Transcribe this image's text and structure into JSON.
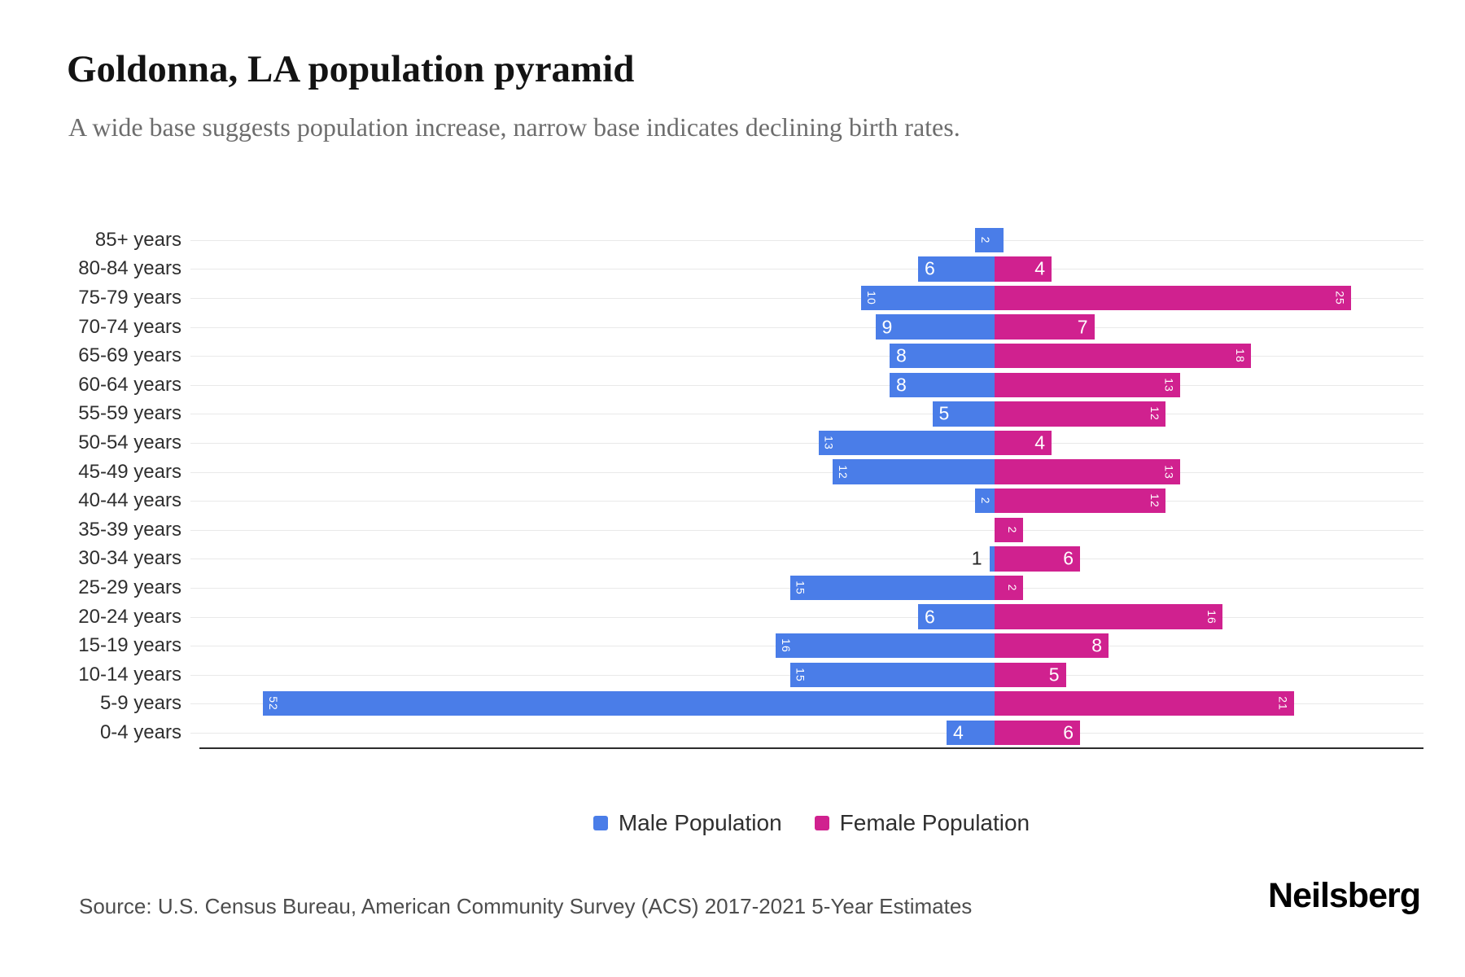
{
  "header": {
    "title": "Goldonna, LA population pyramid",
    "subtitle": "A wide base suggests population increase, narrow base indicates declining birth rates."
  },
  "chart_data": {
    "type": "bar",
    "variant": "population-pyramid",
    "title": "Goldonna, LA population pyramid",
    "categories": [
      "85+ years",
      "80-84 years",
      "75-79 years",
      "70-74 years",
      "65-69 years",
      "60-64 years",
      "55-59 years",
      "50-54 years",
      "45-49 years",
      "40-44 years",
      "35-39 years",
      "30-34 years",
      "25-29 years",
      "20-24 years",
      "15-19 years",
      "10-14 years",
      "5-9 years",
      "0-4 years"
    ],
    "series": [
      {
        "name": "Male Population",
        "color": "#4a7de8",
        "values": [
          2,
          6,
          10,
          9,
          8,
          8,
          5,
          13,
          12,
          2,
          0,
          1,
          15,
          6,
          16,
          15,
          52,
          4
        ]
      },
      {
        "name": "Female Population",
        "color": "#d0218f",
        "values": [
          0,
          4,
          25,
          7,
          18,
          13,
          12,
          4,
          13,
          12,
          2,
          6,
          2,
          16,
          8,
          5,
          21,
          6
        ]
      }
    ],
    "x_axis": {
      "male_max": 56,
      "female_max": 29,
      "shared_scale": true
    },
    "grid": true,
    "legend_position": "bottom"
  },
  "footer": {
    "source": "Source: U.S. Census Bureau, American Community Survey (ACS) 2017-2021 5-Year Estimates",
    "brand": "Neilsberg"
  }
}
